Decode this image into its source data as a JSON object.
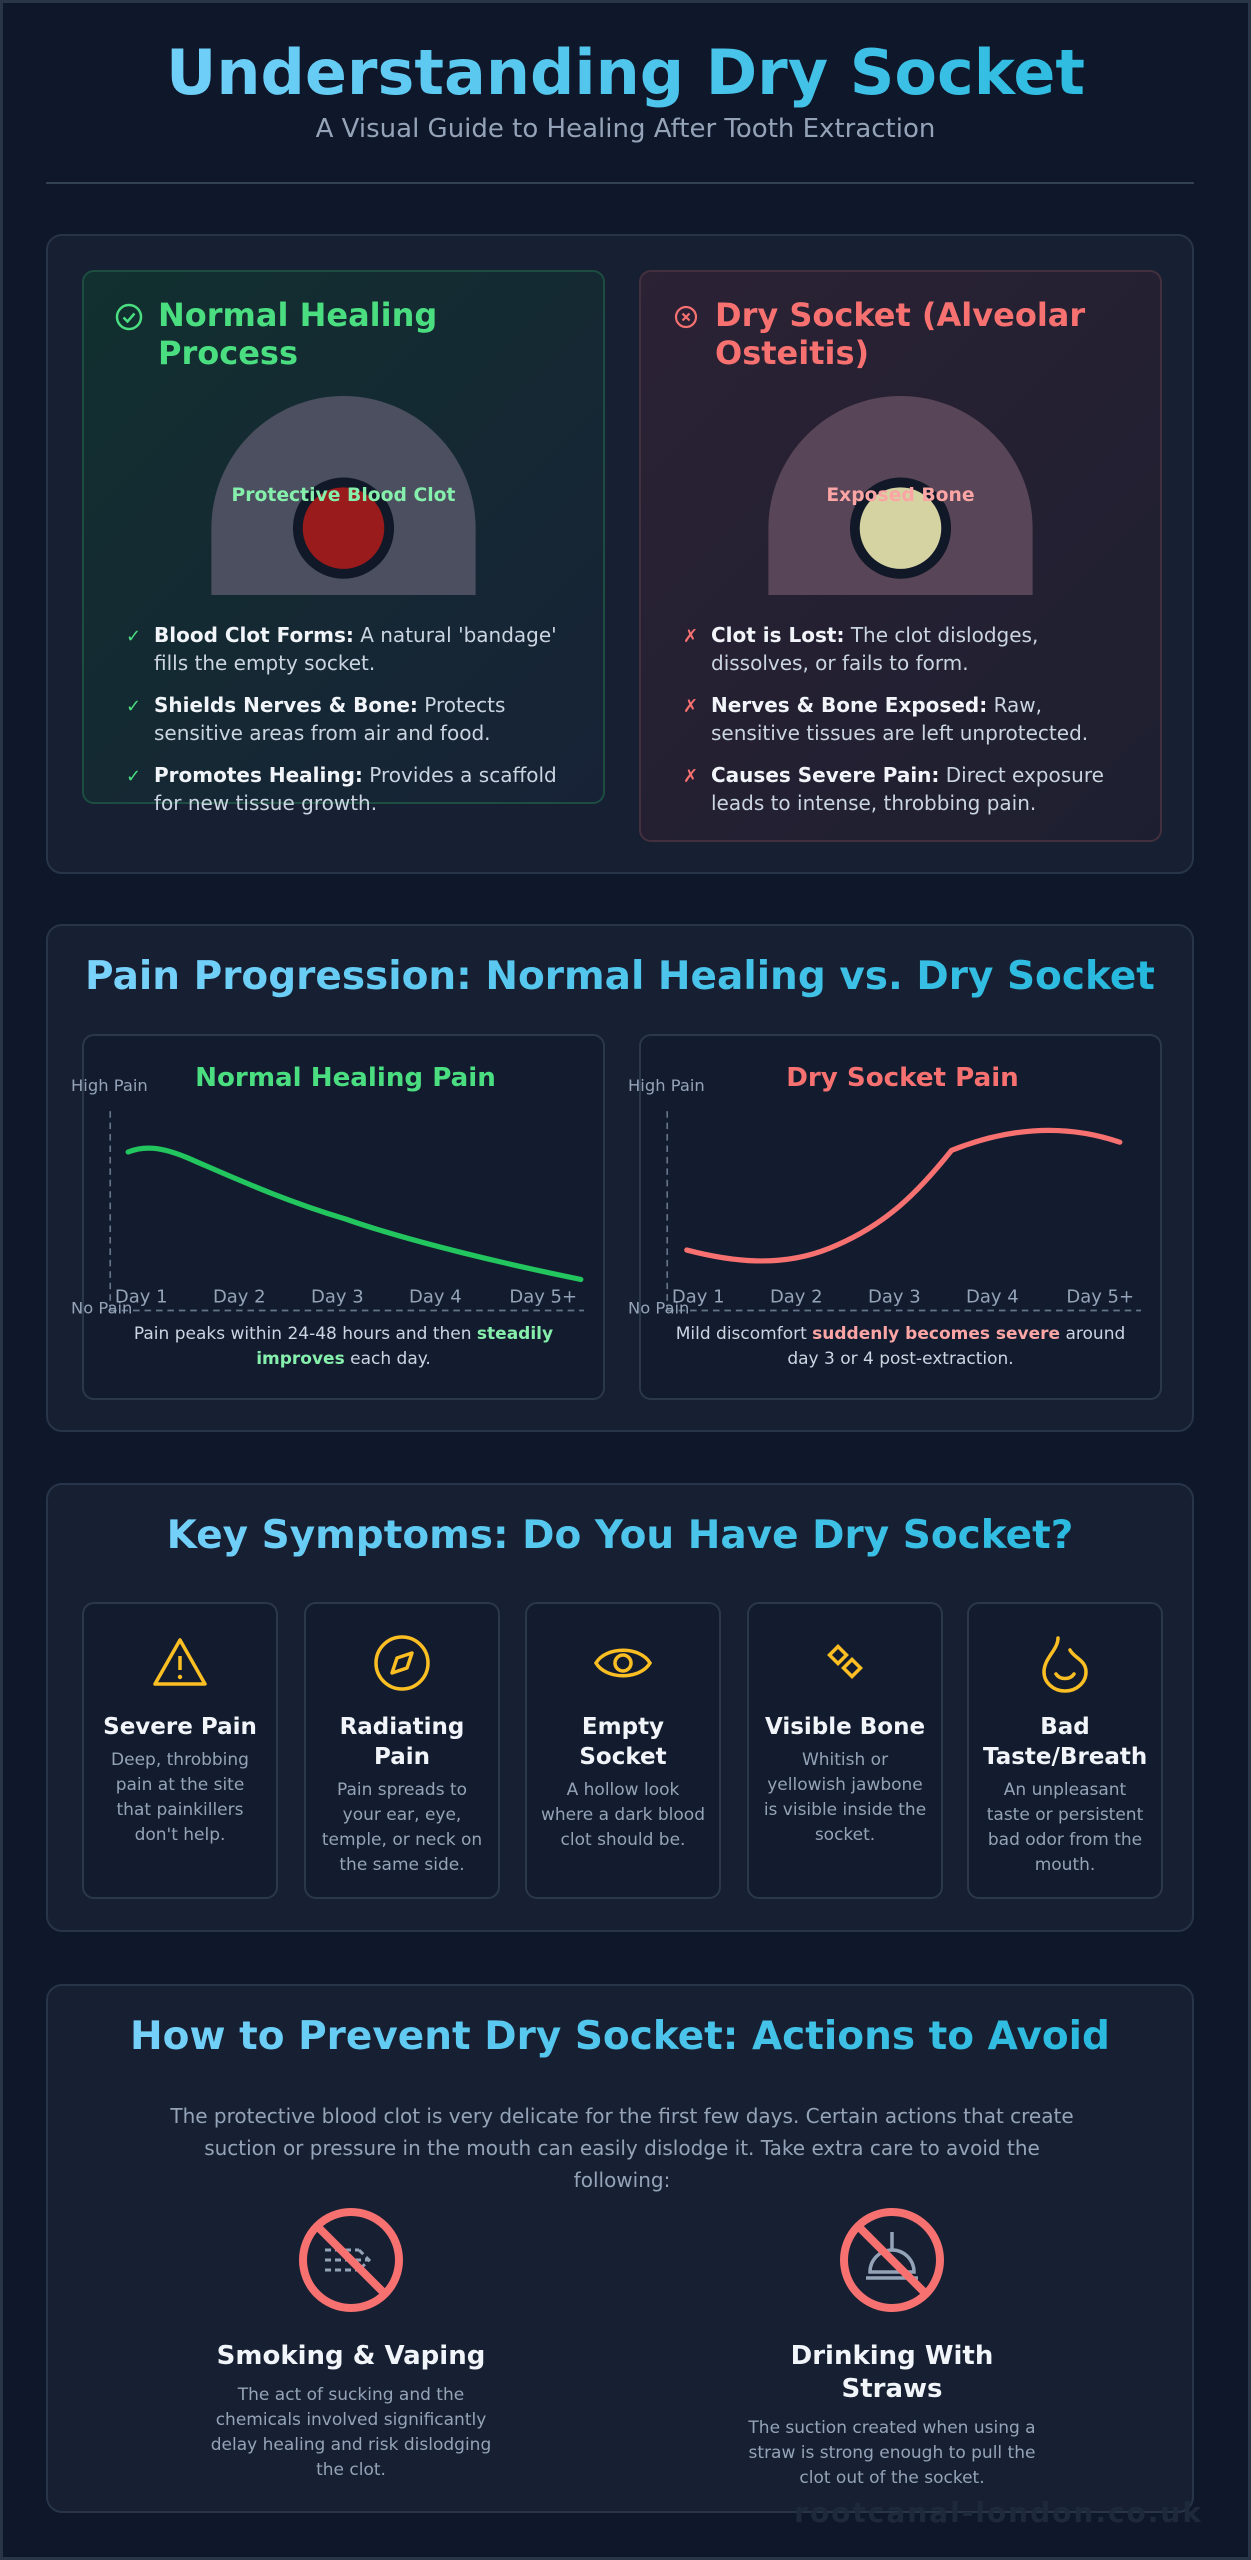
{
  "header": {
    "title": "Understanding Dry Socket",
    "subtitle": "A Visual Guide to Healing After Tooth Extraction"
  },
  "comparison": {
    "normal": {
      "title": "Normal Healing Process",
      "diagram_label": "Protective Blood Clot",
      "items": [
        {
          "label": "Blood Clot Forms:",
          "text": "A natural 'bandage' fills the empty socket."
        },
        {
          "label": "Shields Nerves & Bone:",
          "text": "Protects sensitive areas from air and food."
        },
        {
          "label": "Promotes Healing:",
          "text": "Provides a scaffold for new tissue growth."
        }
      ]
    },
    "dry": {
      "title": "Dry Socket (Alveolar Osteitis)",
      "diagram_label": "Exposed Bone",
      "items": [
        {
          "label": "Clot is Lost:",
          "text": "The clot dislodges, dissolves, or fails to form."
        },
        {
          "label": "Nerves & Bone Exposed:",
          "text": "Raw, sensitive tissues are left unprotected."
        },
        {
          "label": "Causes Severe Pain:",
          "text": "Direct exposure leads to intense, throbbing pain."
        }
      ]
    }
  },
  "pain": {
    "title": "Pain Progression: Normal Healing vs. Dry Socket",
    "charts": [
      {
        "title": "Normal Healing Pain",
        "y_top": "High Pain",
        "y_bottom": "No Pain",
        "days": [
          "Day 1",
          "Day 2",
          "Day 3",
          "Day 4",
          "Day 5+"
        ],
        "caption": [
          "Pain peaks within 24-48 hours and then",
          "steadily improves",
          "each day."
        ]
      },
      {
        "title": "Dry Socket Pain",
        "y_top": "High Pain",
        "y_bottom": "No Pain",
        "days": [
          "Day 1",
          "Day 2",
          "Day 3",
          "Day 4",
          "Day 5+"
        ],
        "caption": [
          "Mild discomfort",
          "suddenly becomes severe",
          "around day 3 or 4 post-extraction."
        ]
      }
    ]
  },
  "symptoms": {
    "title": "Key Symptoms: Do You Have Dry Socket?",
    "items": [
      {
        "title": "Severe Pain",
        "text": "Deep, throbbing pain at the site that painkillers don't help."
      },
      {
        "title": "Radiating Pain",
        "text": "Pain spreads to your ear, eye, temple, or neck on the same side."
      },
      {
        "title": "Empty Socket",
        "text": "A hollow look where a dark blood clot should be."
      },
      {
        "title": "Visible Bone",
        "text": "Whitish or yellowish jawbone is visible inside the socket."
      },
      {
        "title": "Bad Taste/Breath",
        "text": "An unpleasant taste or persistent bad odor from the mouth."
      }
    ]
  },
  "prevention": {
    "title": "How to Prevent Dry Socket: Actions to Avoid",
    "intro": "The protective blood clot is very delicate for the first few days. Certain actions that create suction or pressure in the mouth can easily dislodge it. Take extra care to avoid the following:",
    "items": [
      {
        "title": "Smoking & Vaping",
        "text": "The act of sucking and the chemicals involved significantly delay healing and risk dislodging the clot."
      },
      {
        "title": "Drinking With Straws",
        "text": "The suction created when using a straw is strong enough to pull the clot out of the socket."
      }
    ]
  },
  "footer": "rootcanal-london.co.uk"
}
